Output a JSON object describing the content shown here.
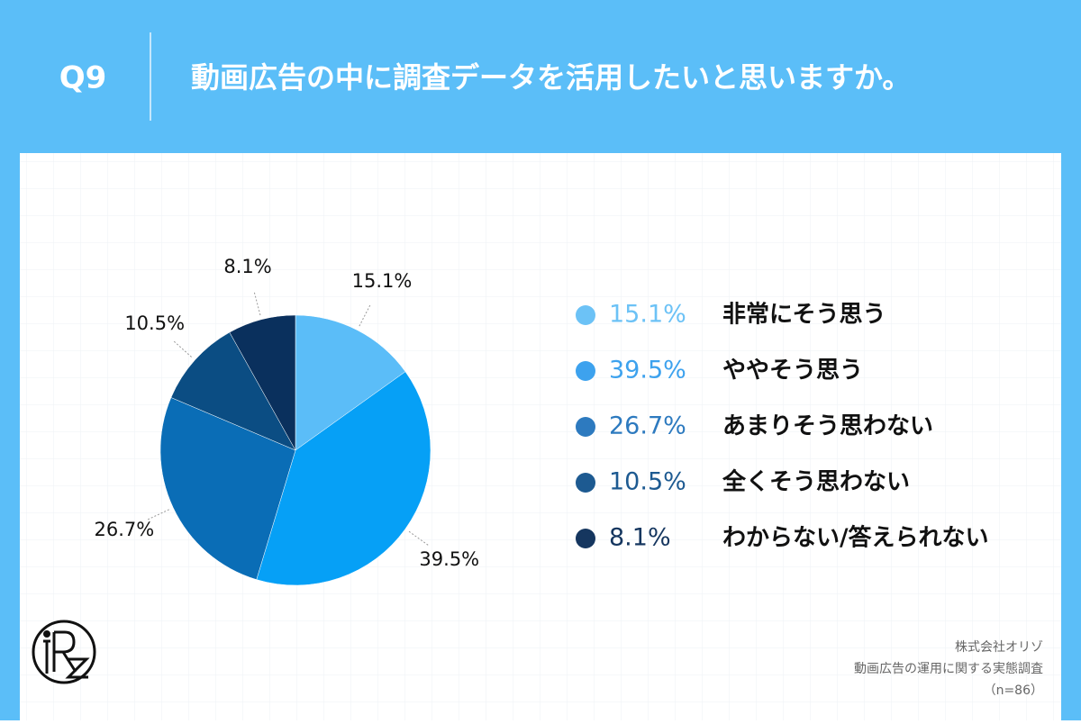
{
  "header": {
    "question": "Q9",
    "title": "動画広告の中に調査データを活用したいと思いますか。"
  },
  "chart_data": {
    "type": "pie",
    "categories": [
      "非常にそう思う",
      "ややそう思う",
      "あまりそう思わない",
      "全くそう思わない",
      "わからない/答えられない"
    ],
    "values": [
      15.1,
      39.5,
      26.7,
      10.5,
      8.1
    ],
    "value_labels": [
      "15.1%",
      "39.5%",
      "26.7%",
      "10.5%",
      "8.1%"
    ],
    "colors": [
      "#5bbdf8",
      "#06a0f6",
      "#0a6db6",
      "#0b4d83",
      "#0a305d"
    ],
    "legend_colors": [
      "#6cc2f6",
      "#3da2ee",
      "#2d7abf",
      "#1d5a91",
      "#15365f"
    ]
  },
  "footer": {
    "company": "株式会社オリゾ",
    "survey": "動画広告の運用に関する実態調査",
    "sample": "（n=86）"
  }
}
